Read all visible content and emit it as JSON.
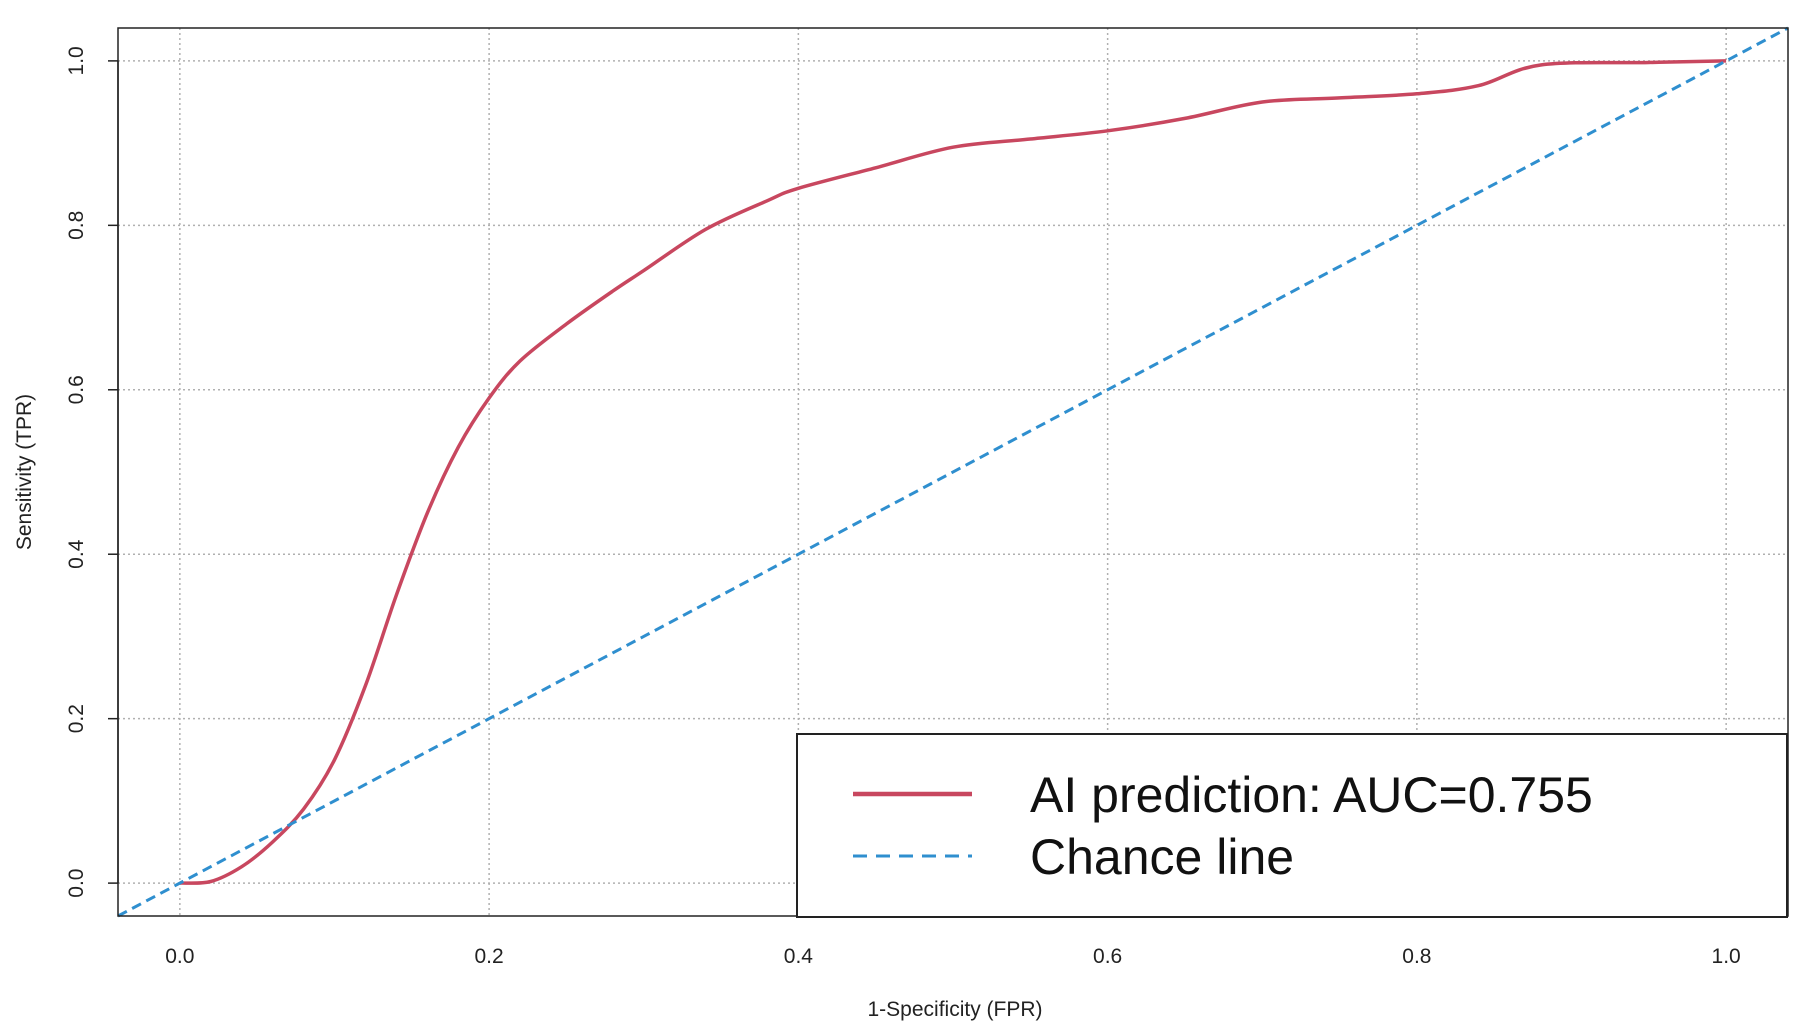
{
  "chart_data": {
    "type": "line",
    "title": "",
    "xlabel": "1-Specificity (FPR)",
    "ylabel": "Sensitivity (TPR)",
    "xlim": [
      -0.04,
      1.04
    ],
    "ylim": [
      -0.04,
      1.04
    ],
    "x_ticks": [
      "0.0",
      "0.2",
      "0.4",
      "0.6",
      "0.8",
      "1.0"
    ],
    "y_ticks": [
      "0.0",
      "0.2",
      "0.4",
      "0.6",
      "0.8",
      "1.0"
    ],
    "grid": true,
    "legend_position": "bottom-right",
    "series": [
      {
        "name": "AI prediction: AUC=0.755",
        "color": "#c8475f",
        "style": "solid",
        "x": [
          0.0,
          0.02,
          0.04,
          0.06,
          0.08,
          0.1,
          0.12,
          0.14,
          0.16,
          0.18,
          0.2,
          0.22,
          0.25,
          0.28,
          0.3,
          0.34,
          0.38,
          0.4,
          0.45,
          0.5,
          0.55,
          0.6,
          0.65,
          0.7,
          0.75,
          0.8,
          0.84,
          0.88,
          0.95,
          1.0
        ],
        "y": [
          0.0,
          0.002,
          0.02,
          0.05,
          0.09,
          0.15,
          0.24,
          0.35,
          0.45,
          0.53,
          0.59,
          0.635,
          0.68,
          0.72,
          0.745,
          0.795,
          0.83,
          0.845,
          0.87,
          0.895,
          0.905,
          0.915,
          0.93,
          0.95,
          0.955,
          0.96,
          0.97,
          0.995,
          0.998,
          1.0
        ]
      },
      {
        "name": "Chance line",
        "color": "#2f8fcf",
        "style": "dashed",
        "x": [
          -0.04,
          1.04
        ],
        "y": [
          -0.04,
          1.04
        ]
      }
    ]
  }
}
